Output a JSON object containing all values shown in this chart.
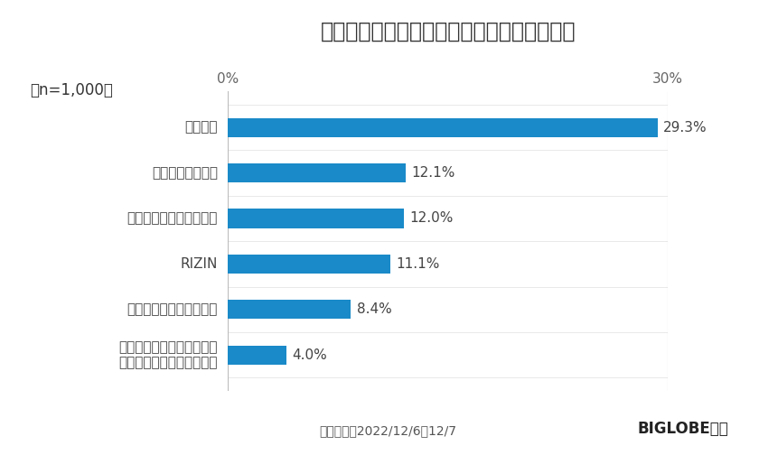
{
  "title": "年末年始に観戦したいスポーツ（複数回答）",
  "sample_label": "（n=1,000）",
  "categories": [
    "ライスボウル（アメリカン\nフットボール日本選手権）",
    "全国高校ラグビー選手権",
    "RIZIN",
    "全国高校サッカー選手権",
    "ニューイヤー駅伝",
    "箱根駅伝"
  ],
  "values": [
    4.0,
    8.4,
    11.1,
    12.0,
    12.1,
    29.3
  ],
  "labels": [
    "4.0%",
    "8.4%",
    "11.1%",
    "12.0%",
    "12.1%",
    "29.3%"
  ],
  "bar_color": "#1a8ac8",
  "background_color": "#ffffff",
  "xlim_max": 30,
  "xtick_labels": [
    "0%",
    "30%"
  ],
  "xtick_positions": [
    0,
    30
  ],
  "footer_left": "調査期間：2022/12/6〜12/7",
  "footer_right": "BIGLOBE調べ",
  "title_fontsize": 17,
  "label_fontsize": 11,
  "tick_fontsize": 11,
  "footer_fontsize": 10,
  "sample_fontsize": 12,
  "bar_height": 0.42
}
